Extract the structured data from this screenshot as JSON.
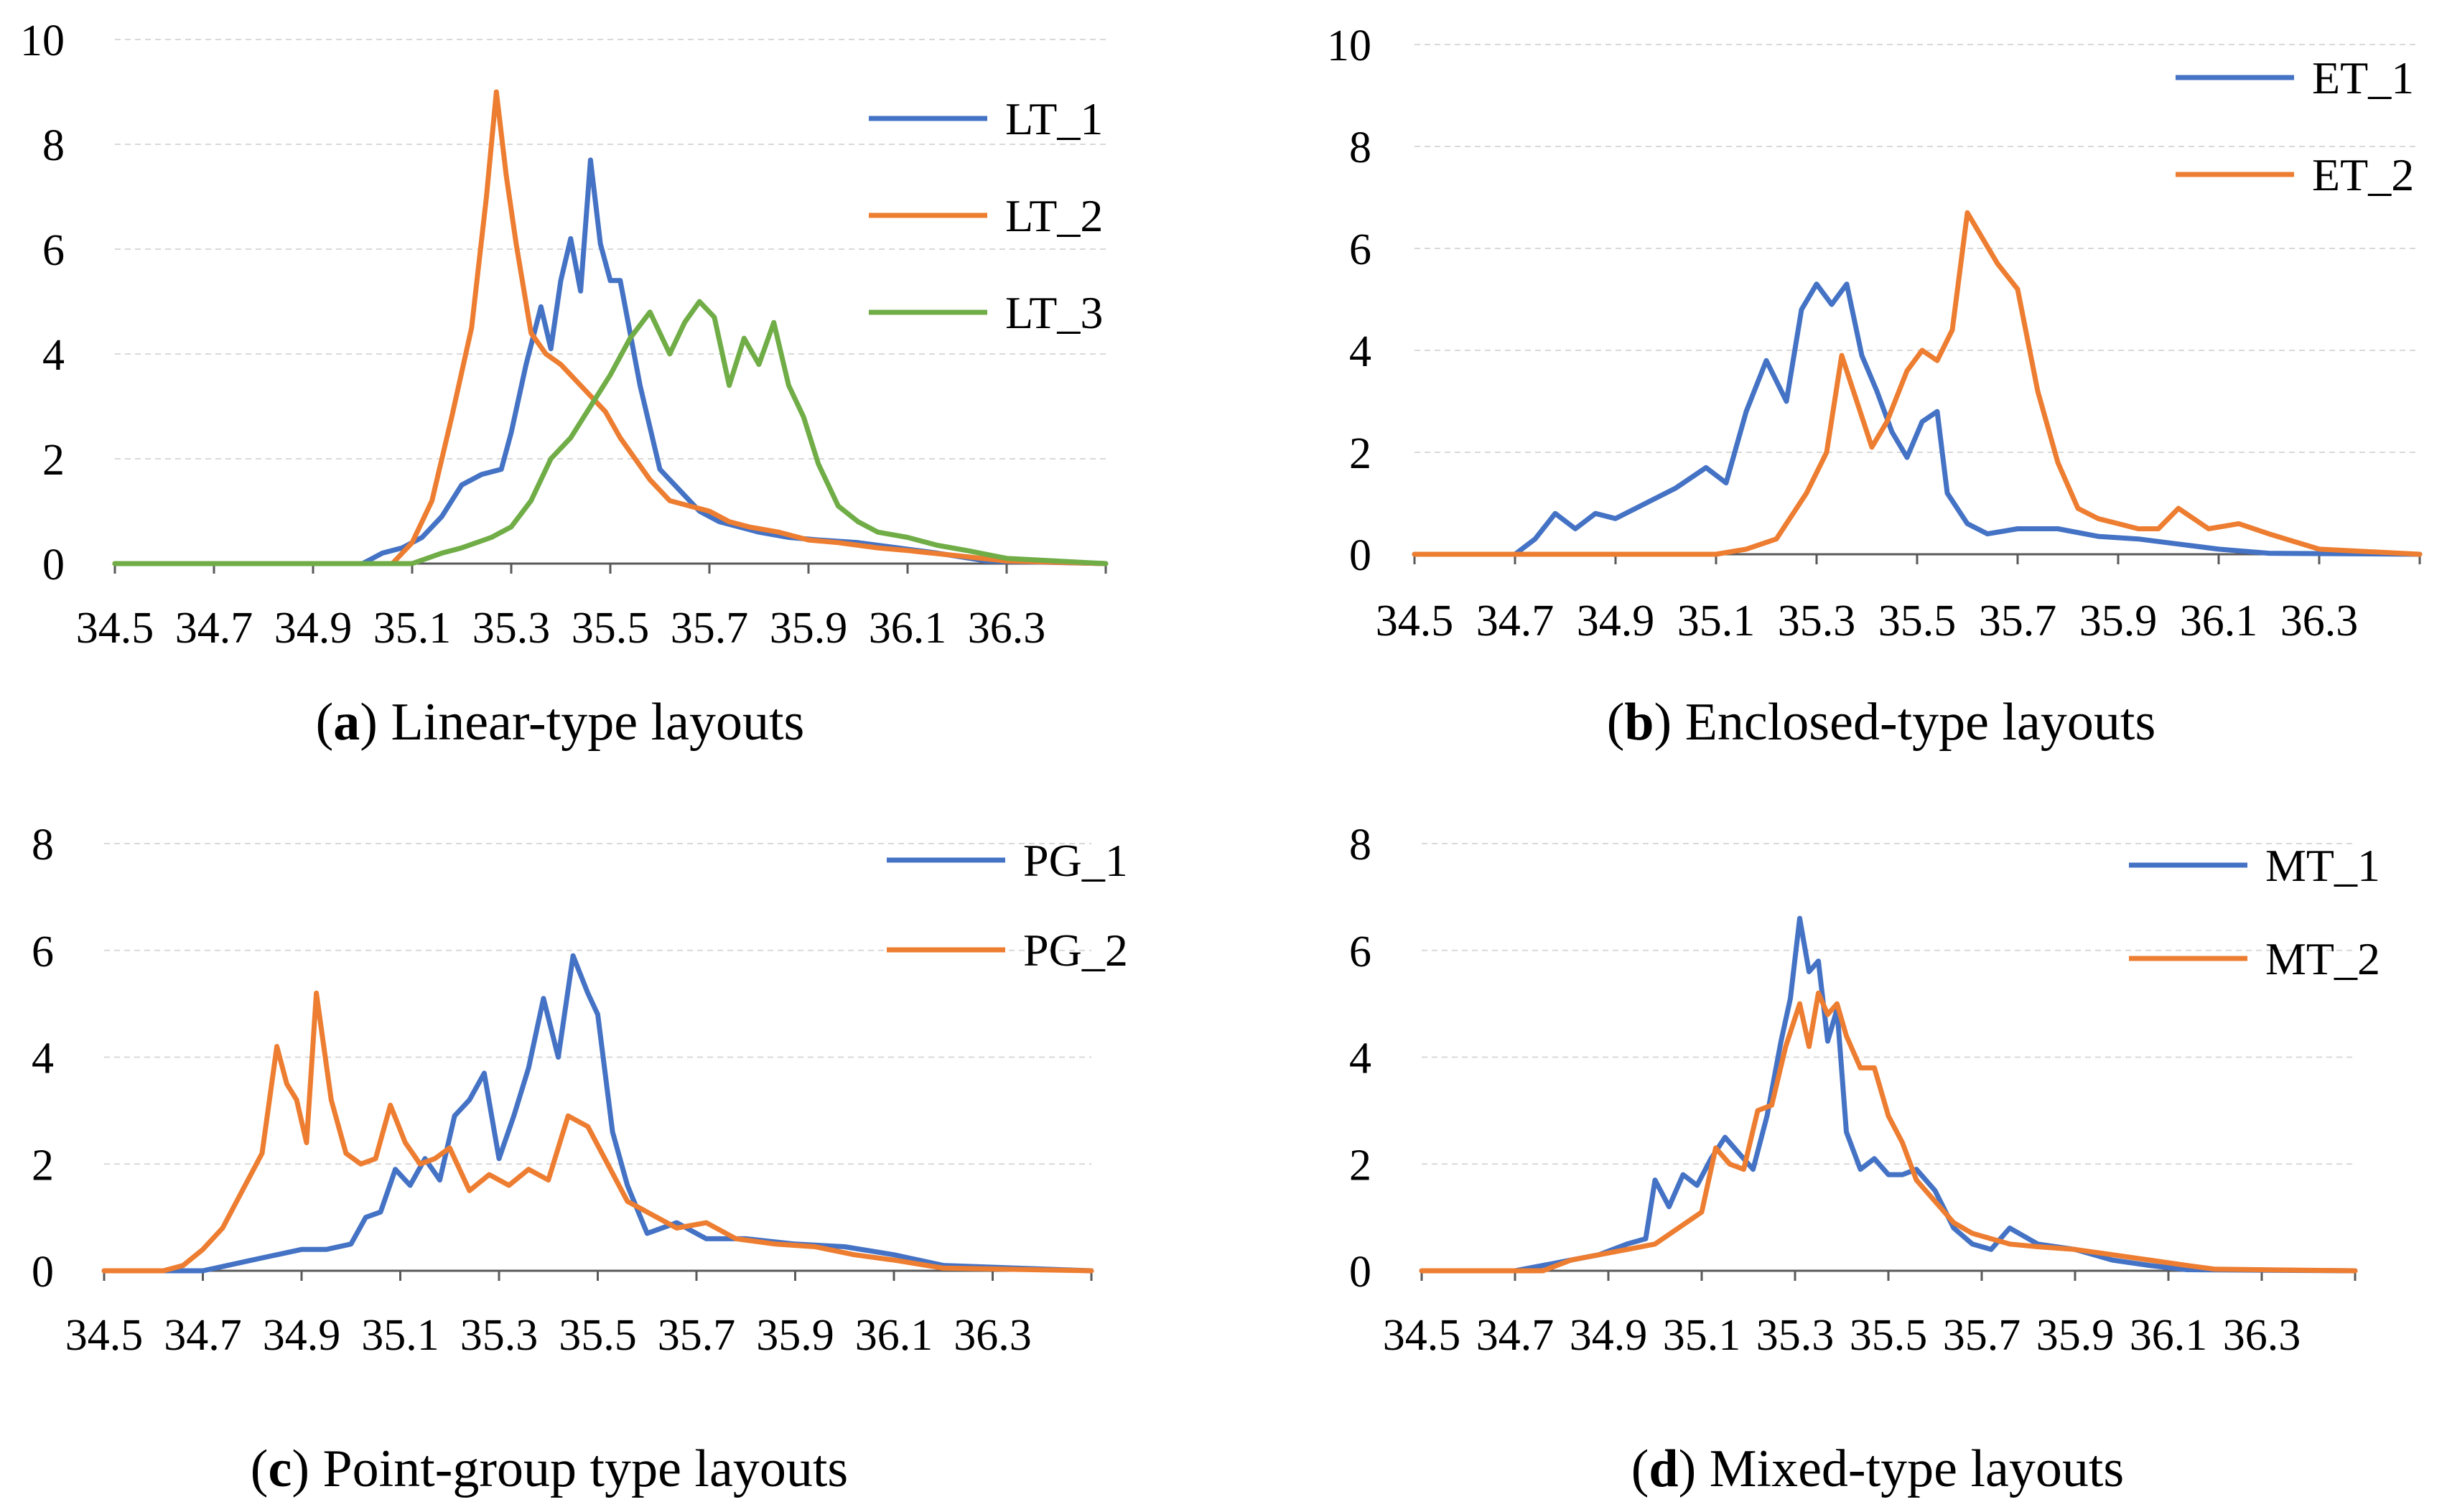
{
  "figure": {
    "panels": [
      {
        "id": "a",
        "letter": "a",
        "caption": " Linear-type layouts"
      },
      {
        "id": "b",
        "letter": "b",
        "caption": " Enclosed-type layouts"
      },
      {
        "id": "c",
        "letter": "c",
        "caption": " Point-group type layouts"
      },
      {
        "id": "d",
        "letter": "d",
        "caption": " Mixed-type layouts"
      }
    ]
  },
  "colors": {
    "blue": "#4472C4",
    "orange": "#ED7D31",
    "green": "#70AD47",
    "grid": "#d9d9d9",
    "axis": "#595959"
  },
  "chart_data": [
    {
      "id": "a",
      "type": "line",
      "title": "(a) Linear-type layouts",
      "xlabel": "",
      "ylabel": "",
      "xlim": [
        34.5,
        36.5
      ],
      "ylim": [
        0,
        10
      ],
      "y_ticks": [
        "0",
        "2",
        "4",
        "6",
        "8",
        "10"
      ],
      "x_ticks": [
        "34.5",
        "34.7",
        "34.9",
        "35.1",
        "35.3",
        "35.5",
        "35.7",
        "35.9",
        "36.1",
        "36.3"
      ],
      "legend_position": "top-right",
      "series": [
        {
          "name": "LT_1",
          "color": "#4472C4",
          "x": [
            34.5,
            35.0,
            35.04,
            35.08,
            35.12,
            35.16,
            35.2,
            35.24,
            35.28,
            35.3,
            35.33,
            35.36,
            35.38,
            35.4,
            35.42,
            35.44,
            35.46,
            35.48,
            35.5,
            35.52,
            35.54,
            35.56,
            35.58,
            35.6,
            35.64,
            35.68,
            35.72,
            35.76,
            35.8,
            35.86,
            35.92,
            36.0,
            36.08,
            36.16,
            36.26,
            36.5
          ],
          "y": [
            0,
            0,
            0.2,
            0.3,
            0.5,
            0.9,
            1.5,
            1.7,
            1.8,
            2.5,
            3.8,
            4.9,
            4.1,
            5.4,
            6.2,
            5.2,
            7.7,
            6.1,
            5.4,
            5.4,
            4.4,
            3.4,
            2.6,
            1.8,
            1.4,
            1.0,
            0.8,
            0.7,
            0.6,
            0.5,
            0.45,
            0.4,
            0.3,
            0.2,
            0.05,
            0
          ]
        },
        {
          "name": "LT_2",
          "color": "#ED7D31",
          "x": [
            34.5,
            35.06,
            35.1,
            35.14,
            35.18,
            35.22,
            35.25,
            35.27,
            35.29,
            35.31,
            35.34,
            35.37,
            35.4,
            35.43,
            35.46,
            35.49,
            35.52,
            35.55,
            35.58,
            35.62,
            35.66,
            35.7,
            35.74,
            35.78,
            35.84,
            35.9,
            35.96,
            36.04,
            36.1,
            36.2,
            36.3,
            36.5
          ],
          "y": [
            0,
            0,
            0.4,
            1.2,
            2.8,
            4.5,
            7.0,
            9.0,
            7.4,
            6.1,
            4.4,
            4.0,
            3.8,
            3.5,
            3.2,
            2.9,
            2.4,
            2.0,
            1.6,
            1.2,
            1.1,
            1.0,
            0.8,
            0.7,
            0.6,
            0.45,
            0.4,
            0.3,
            0.25,
            0.15,
            0.05,
            0
          ]
        },
        {
          "name": "LT_3",
          "color": "#70AD47",
          "x": [
            34.5,
            35.1,
            35.16,
            35.2,
            35.26,
            35.3,
            35.34,
            35.38,
            35.42,
            35.46,
            35.5,
            35.54,
            35.58,
            35.62,
            35.65,
            35.68,
            35.71,
            35.74,
            35.77,
            35.8,
            35.83,
            35.86,
            35.89,
            35.92,
            35.96,
            36.0,
            36.04,
            36.1,
            36.16,
            36.22,
            36.3,
            36.5
          ],
          "y": [
            0,
            0,
            0.2,
            0.3,
            0.5,
            0.7,
            1.2,
            2.0,
            2.4,
            3.0,
            3.6,
            4.3,
            4.8,
            4.0,
            4.6,
            5.0,
            4.7,
            3.4,
            4.3,
            3.8,
            4.6,
            3.4,
            2.8,
            1.9,
            1.1,
            0.8,
            0.6,
            0.5,
            0.35,
            0.25,
            0.1,
            0
          ]
        }
      ]
    },
    {
      "id": "b",
      "type": "line",
      "title": "(b) Enclosed-type layouts",
      "xlabel": "",
      "ylabel": "",
      "xlim": [
        34.5,
        36.5
      ],
      "ylim": [
        0,
        10
      ],
      "y_ticks": [
        "0",
        "2",
        "4",
        "6",
        "8",
        "10"
      ],
      "x_ticks": [
        "34.5",
        "34.7",
        "34.9",
        "35.1",
        "35.3",
        "35.5",
        "35.7",
        "35.9",
        "36.1",
        "36.3"
      ],
      "legend_position": "top-right",
      "series": [
        {
          "name": "ET_1",
          "color": "#4472C4",
          "x": [
            34.5,
            34.7,
            34.74,
            34.78,
            34.82,
            34.86,
            34.9,
            34.96,
            35.02,
            35.08,
            35.12,
            35.16,
            35.2,
            35.24,
            35.27,
            35.3,
            35.33,
            35.36,
            35.39,
            35.42,
            35.45,
            35.48,
            35.51,
            35.54,
            35.56,
            35.6,
            35.64,
            35.7,
            35.78,
            35.86,
            35.94,
            36.02,
            36.1,
            36.2,
            36.5
          ],
          "y": [
            0,
            0,
            0.3,
            0.8,
            0.5,
            0.8,
            0.7,
            1.0,
            1.3,
            1.7,
            1.4,
            2.8,
            3.8,
            3.0,
            4.8,
            5.3,
            4.9,
            5.3,
            3.9,
            3.2,
            2.4,
            1.9,
            2.6,
            2.8,
            1.2,
            0.6,
            0.4,
            0.5,
            0.5,
            0.35,
            0.3,
            0.2,
            0.1,
            0.02,
            0
          ]
        },
        {
          "name": "ET_2",
          "color": "#ED7D31",
          "x": [
            34.5,
            35.1,
            35.16,
            35.22,
            35.28,
            35.32,
            35.35,
            35.38,
            35.41,
            35.44,
            35.48,
            35.51,
            35.54,
            35.57,
            35.6,
            35.63,
            35.66,
            35.7,
            35.74,
            35.78,
            35.82,
            35.86,
            35.9,
            35.94,
            35.98,
            36.02,
            36.08,
            36.14,
            36.2,
            36.3,
            36.5
          ],
          "y": [
            0,
            0,
            0.1,
            0.3,
            1.2,
            2.0,
            3.9,
            3.0,
            2.1,
            2.6,
            3.6,
            4.0,
            3.8,
            4.4,
            6.7,
            6.2,
            5.7,
            5.2,
            3.2,
            1.8,
            0.9,
            0.7,
            0.6,
            0.5,
            0.5,
            0.9,
            0.5,
            0.6,
            0.4,
            0.1,
            0
          ]
        }
      ]
    },
    {
      "id": "c",
      "type": "line",
      "title": "(c) Point-group type layouts",
      "xlabel": "",
      "ylabel": "",
      "xlim": [
        34.5,
        36.5
      ],
      "ylim": [
        0,
        8
      ],
      "y_ticks": [
        "0",
        "2",
        "4",
        "6",
        "8"
      ],
      "x_ticks": [
        "34.5",
        "34.7",
        "34.9",
        "35.1",
        "35.3",
        "35.5",
        "35.7",
        "35.9",
        "36.1",
        "36.3"
      ],
      "legend_position": "top-right",
      "series": [
        {
          "name": "PG_1",
          "color": "#4472C4",
          "x": [
            34.5,
            34.7,
            34.75,
            34.8,
            34.85,
            34.9,
            34.95,
            35.0,
            35.03,
            35.06,
            35.09,
            35.12,
            35.15,
            35.18,
            35.21,
            35.24,
            35.27,
            35.3,
            35.33,
            35.36,
            35.39,
            35.42,
            35.45,
            35.48,
            35.5,
            35.53,
            35.56,
            35.6,
            35.66,
            35.72,
            35.8,
            35.9,
            36.0,
            36.1,
            36.2,
            36.5
          ],
          "y": [
            0,
            0,
            0.1,
            0.2,
            0.3,
            0.4,
            0.4,
            0.5,
            1.0,
            1.1,
            1.9,
            1.6,
            2.1,
            1.7,
            2.9,
            3.2,
            3.7,
            2.1,
            2.9,
            3.8,
            5.1,
            4.0,
            5.9,
            5.2,
            4.8,
            2.6,
            1.6,
            0.7,
            0.9,
            0.6,
            0.6,
            0.5,
            0.45,
            0.3,
            0.1,
            0
          ]
        },
        {
          "name": "PG_2",
          "color": "#ED7D31",
          "x": [
            34.5,
            34.62,
            34.66,
            34.7,
            34.74,
            34.78,
            34.82,
            34.85,
            34.87,
            34.89,
            34.91,
            34.93,
            34.96,
            34.99,
            35.02,
            35.05,
            35.08,
            35.11,
            35.14,
            35.17,
            35.2,
            35.24,
            35.28,
            35.32,
            35.36,
            35.4,
            35.44,
            35.48,
            35.52,
            35.56,
            35.6,
            35.66,
            35.72,
            35.78,
            35.86,
            35.94,
            36.02,
            36.1,
            36.2,
            36.5
          ],
          "y": [
            0,
            0,
            0.1,
            0.4,
            0.8,
            1.5,
            2.2,
            4.2,
            3.5,
            3.2,
            2.4,
            5.2,
            3.2,
            2.2,
            2.0,
            2.1,
            3.1,
            2.4,
            2.0,
            2.1,
            2.3,
            1.5,
            1.8,
            1.6,
            1.9,
            1.7,
            2.9,
            2.7,
            2.0,
            1.3,
            1.1,
            0.8,
            0.9,
            0.6,
            0.5,
            0.45,
            0.3,
            0.2,
            0.05,
            0
          ]
        }
      ]
    },
    {
      "id": "d",
      "type": "line",
      "title": "(d) Mixed-type layouts",
      "xlabel": "",
      "ylabel": "",
      "xlim": [
        34.5,
        36.5
      ],
      "ylim": [
        0,
        8
      ],
      "y_ticks": [
        "0",
        "2",
        "4",
        "6",
        "8"
      ],
      "x_ticks": [
        "34.5",
        "34.7",
        "34.9",
        "35.1",
        "35.3",
        "35.5",
        "35.7",
        "35.9",
        "36.1",
        "36.3"
      ],
      "legend_position": "top-right",
      "series": [
        {
          "name": "MT_1",
          "color": "#4472C4",
          "x": [
            34.5,
            34.7,
            34.76,
            34.82,
            34.88,
            34.94,
            34.98,
            35.0,
            35.03,
            35.06,
            35.09,
            35.12,
            35.15,
            35.18,
            35.21,
            35.24,
            35.27,
            35.29,
            35.31,
            35.33,
            35.35,
            35.37,
            35.39,
            35.41,
            35.44,
            35.47,
            35.5,
            35.53,
            35.56,
            35.6,
            35.64,
            35.68,
            35.72,
            35.76,
            35.82,
            35.9,
            35.98,
            36.06,
            36.14,
            36.5
          ],
          "y": [
            0,
            0,
            0.1,
            0.2,
            0.3,
            0.5,
            0.6,
            1.7,
            1.2,
            1.8,
            1.6,
            2.1,
            2.5,
            2.2,
            1.9,
            2.9,
            4.3,
            5.1,
            6.6,
            5.6,
            5.8,
            4.3,
            4.9,
            2.6,
            1.9,
            2.1,
            1.8,
            1.8,
            1.9,
            1.5,
            0.8,
            0.5,
            0.4,
            0.8,
            0.5,
            0.4,
            0.2,
            0.1,
            0.02,
            0
          ]
        },
        {
          "name": "MT_2",
          "color": "#ED7D31",
          "x": [
            34.5,
            34.76,
            34.82,
            34.88,
            34.94,
            35.0,
            35.05,
            35.1,
            35.13,
            35.16,
            35.19,
            35.22,
            35.25,
            35.28,
            35.31,
            35.33,
            35.35,
            35.37,
            35.39,
            35.41,
            35.44,
            35.47,
            35.5,
            35.53,
            35.56,
            35.6,
            35.64,
            35.68,
            35.72,
            35.76,
            35.82,
            35.9,
            35.98,
            36.06,
            36.14,
            36.2,
            36.5
          ],
          "y": [
            0,
            0,
            0.2,
            0.3,
            0.4,
            0.5,
            0.8,
            1.1,
            2.3,
            2.0,
            1.9,
            3.0,
            3.1,
            4.2,
            5.0,
            4.2,
            5.2,
            4.8,
            5.0,
            4.4,
            3.8,
            3.8,
            2.9,
            2.4,
            1.7,
            1.3,
            0.9,
            0.7,
            0.6,
            0.5,
            0.45,
            0.4,
            0.3,
            0.2,
            0.1,
            0.03,
            0
          ]
        }
      ]
    }
  ]
}
